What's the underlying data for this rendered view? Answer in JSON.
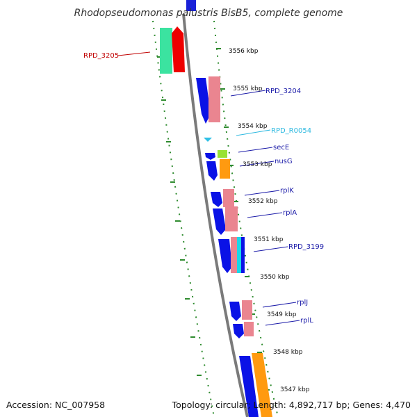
{
  "title": "Rhodopseudomonas palustris BisB5, complete genome",
  "colors": {
    "backbone": "#7a7a7a",
    "dotted_track": "#2e8b2e",
    "tick": "#2e8b2e",
    "cds_forward": "#0a12e6",
    "cds_reverse": "#ea8590",
    "trna": "#2fc0e6",
    "label_blue": "#1a1aa8",
    "label_red": "#c00000",
    "label_cyan": "#2ab8e0"
  },
  "ticks": [
    {
      "label": "3556 kbp"
    },
    {
      "label": "3555 kbp"
    },
    {
      "label": "3554 kbp"
    },
    {
      "label": "3553 kbp"
    },
    {
      "label": "3552 kbp"
    },
    {
      "label": "3551 kbp"
    },
    {
      "label": "3550 kbp"
    },
    {
      "label": "3549 kbp"
    },
    {
      "label": "3548 kbp"
    },
    {
      "label": "3547 kbp"
    }
  ],
  "gene_labels": [
    {
      "name": "RPD_3205",
      "color": "#c00000"
    },
    {
      "name": "RPD_3204",
      "color": "#1a1aa8"
    },
    {
      "name": "RPD_R0054",
      "color": "#2ab8e0"
    },
    {
      "name": "secE",
      "color": "#1a1aa8"
    },
    {
      "name": "nusG",
      "color": "#1a1aa8"
    },
    {
      "name": "rplK",
      "color": "#1a1aa8"
    },
    {
      "name": "rplA",
      "color": "#1a1aa8"
    },
    {
      "name": "RPD_3199",
      "color": "#1a1aa8"
    },
    {
      "name": "rplJ",
      "color": "#1a1aa8"
    },
    {
      "name": "rplL",
      "color": "#1a1aa8"
    }
  ],
  "footer": {
    "accession": "Accession: NC_007958",
    "topology": "Topology: circular; Length: 4,892,717 bp; Genes: 4,470"
  }
}
